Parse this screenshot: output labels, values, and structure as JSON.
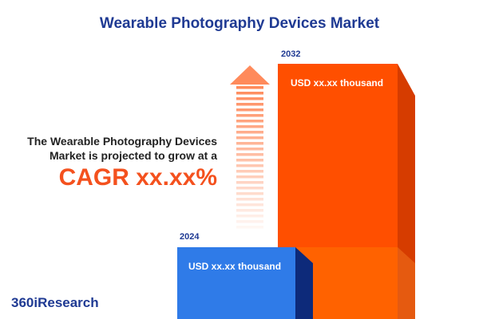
{
  "header": {
    "title": "Wearable Photography Devices Market"
  },
  "text": {
    "line1": "The Wearable Photography Devices",
    "line2": "Market is projected to grow at a",
    "cagr": "CAGR xx.xx%"
  },
  "bars": [
    {
      "year": "2024",
      "label": "USD xx.xx thousand"
    },
    {
      "year": "2032",
      "label": "USD xx.xx thousand"
    }
  ],
  "logo": {
    "text": "360iResearch"
  }
}
